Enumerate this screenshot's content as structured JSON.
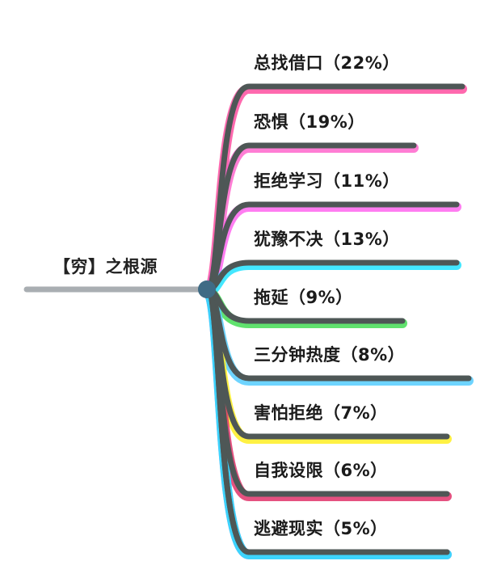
{
  "root": {
    "label": "【穷】之根源"
  },
  "branches": [
    {
      "label": "总找借口（22%）",
      "percent": 22,
      "accent": "#ff4fa0"
    },
    {
      "label": "恐惧（19%）",
      "percent": 19,
      "accent": "#ff66cc"
    },
    {
      "label": "拒绝学习（11%）",
      "percent": 11,
      "accent": "#ff66ee"
    },
    {
      "label": "犹豫不决（13%）",
      "percent": 13,
      "accent": "#22e3ff"
    },
    {
      "label": "拖延（9%）",
      "percent": 9,
      "accent": "#44dd55"
    },
    {
      "label": "三分钟热度（8%）",
      "percent": 8,
      "accent": "#55ccff"
    },
    {
      "label": "害怕拒绝（7%）",
      "percent": 7,
      "accent": "#ffee22"
    },
    {
      "label": "自我设限（6%）",
      "percent": 6,
      "accent": "#e0336a"
    },
    {
      "label": "逃避现实（5%）",
      "percent": 5,
      "accent": "#cc66ee"
    },
    {
      "label": "",
      "percent": null,
      "accent": "#22e3ff"
    }
  ],
  "colors": {
    "line_dark": "#4e5756",
    "root_line": "#a9aeb2",
    "node": "#3f6b85"
  }
}
